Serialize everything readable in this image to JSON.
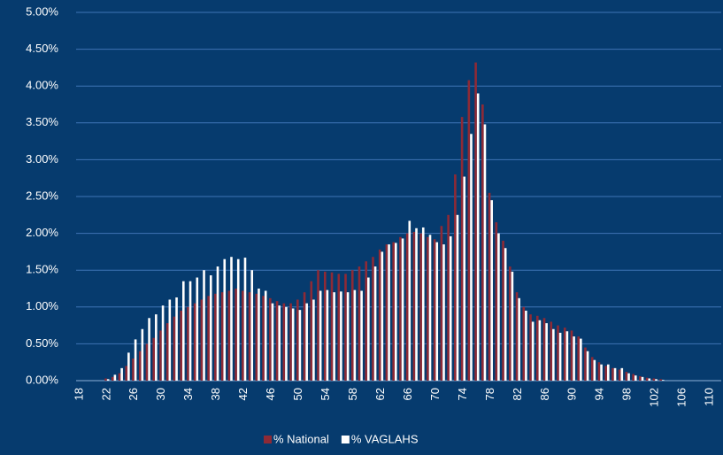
{
  "chart_data": {
    "type": "bar",
    "categories": [
      "18",
      null,
      null,
      null,
      "22",
      null,
      null,
      null,
      "26",
      null,
      null,
      null,
      "30",
      null,
      null,
      null,
      "34",
      null,
      null,
      null,
      "38",
      null,
      null,
      null,
      "42",
      null,
      null,
      null,
      "46",
      null,
      null,
      null,
      "50",
      null,
      null,
      null,
      "54",
      null,
      null,
      null,
      "58",
      null,
      null,
      null,
      "62",
      null,
      null,
      null,
      "66",
      null,
      null,
      null,
      "70",
      null,
      null,
      null,
      "74",
      null,
      null,
      null,
      "78",
      null,
      null,
      null,
      "82",
      null,
      null,
      null,
      "86",
      null,
      null,
      null,
      "90",
      null,
      null,
      null,
      "94",
      null,
      null,
      null,
      "98",
      null,
      null,
      null,
      "102",
      null,
      null,
      null,
      "106",
      null,
      null,
      null,
      "110"
    ],
    "series": [
      {
        "name": "% National",
        "color": "#8e2a36",
        "values": [
          0,
          0,
          0,
          0,
          0.03,
          0.05,
          0.1,
          0.2,
          0.3,
          0.4,
          0.5,
          0.58,
          0.68,
          0.78,
          0.87,
          0.95,
          1.0,
          1.05,
          1.1,
          1.15,
          1.18,
          1.2,
          1.22,
          1.25,
          1.22,
          1.2,
          1.18,
          1.15,
          1.12,
          1.08,
          1.05,
          1.05,
          1.1,
          1.2,
          1.35,
          1.5,
          1.48,
          1.47,
          1.45,
          1.45,
          1.5,
          1.55,
          1.62,
          1.68,
          1.78,
          1.85,
          1.88,
          1.95,
          2.0,
          2.02,
          2.0,
          1.95,
          1.92,
          2.1,
          2.25,
          2.8,
          3.58,
          4.08,
          4.32,
          3.75,
          2.55,
          2.15,
          1.9,
          1.55,
          1.2,
          1.0,
          0.9,
          0.88,
          0.85,
          0.8,
          0.75,
          0.72,
          0.68,
          0.6,
          0.45,
          0.32,
          0.25,
          0.2,
          0.17,
          0.15,
          0.12,
          0.09,
          0.06,
          0.04,
          0.03,
          0.02,
          0,
          0,
          0,
          0,
          0,
          0,
          0
        ]
      },
      {
        "name": "% VAGLAHS",
        "color": "#ffffff",
        "values": [
          0,
          0,
          0,
          0,
          0.02,
          0.08,
          0.17,
          0.38,
          0.56,
          0.7,
          0.85,
          0.9,
          1.02,
          1.1,
          1.13,
          1.35,
          1.35,
          1.4,
          1.5,
          1.43,
          1.55,
          1.65,
          1.68,
          1.65,
          1.67,
          1.5,
          1.25,
          1.22,
          1.05,
          1.02,
          1.0,
          0.98,
          0.96,
          1.05,
          1.1,
          1.22,
          1.23,
          1.2,
          1.21,
          1.2,
          1.23,
          1.22,
          1.4,
          1.55,
          1.75,
          1.85,
          1.87,
          1.93,
          2.17,
          2.07,
          2.08,
          1.98,
          1.88,
          1.85,
          1.96,
          2.25,
          2.77,
          3.35,
          3.9,
          3.48,
          2.45,
          2.0,
          1.8,
          1.48,
          1.12,
          0.95,
          0.8,
          0.82,
          0.78,
          0.7,
          0.65,
          0.67,
          0.6,
          0.57,
          0.4,
          0.28,
          0.22,
          0.22,
          0.17,
          0.17,
          0.1,
          0.07,
          0.05,
          0.03,
          0.02,
          0.01,
          0,
          0,
          0,
          0,
          0,
          0,
          0
        ]
      }
    ],
    "ylim": [
      0,
      5
    ],
    "yticks": [
      {
        "value": 0,
        "label": "0.00%"
      },
      {
        "value": 0.5,
        "label": "0.50%"
      },
      {
        "value": 1,
        "label": "1.00%"
      },
      {
        "value": 1.5,
        "label": "1.50%"
      },
      {
        "value": 2,
        "label": "2.00%"
      },
      {
        "value": 2.5,
        "label": "2.50%"
      },
      {
        "value": 3,
        "label": "3.00%"
      },
      {
        "value": 3.5,
        "label": "3.50%"
      },
      {
        "value": 4,
        "label": "4.00%"
      },
      {
        "value": 4.5,
        "label": "4.50%"
      },
      {
        "value": 5,
        "label": "5.00%"
      }
    ],
    "grid": true,
    "legend": "bottom"
  }
}
